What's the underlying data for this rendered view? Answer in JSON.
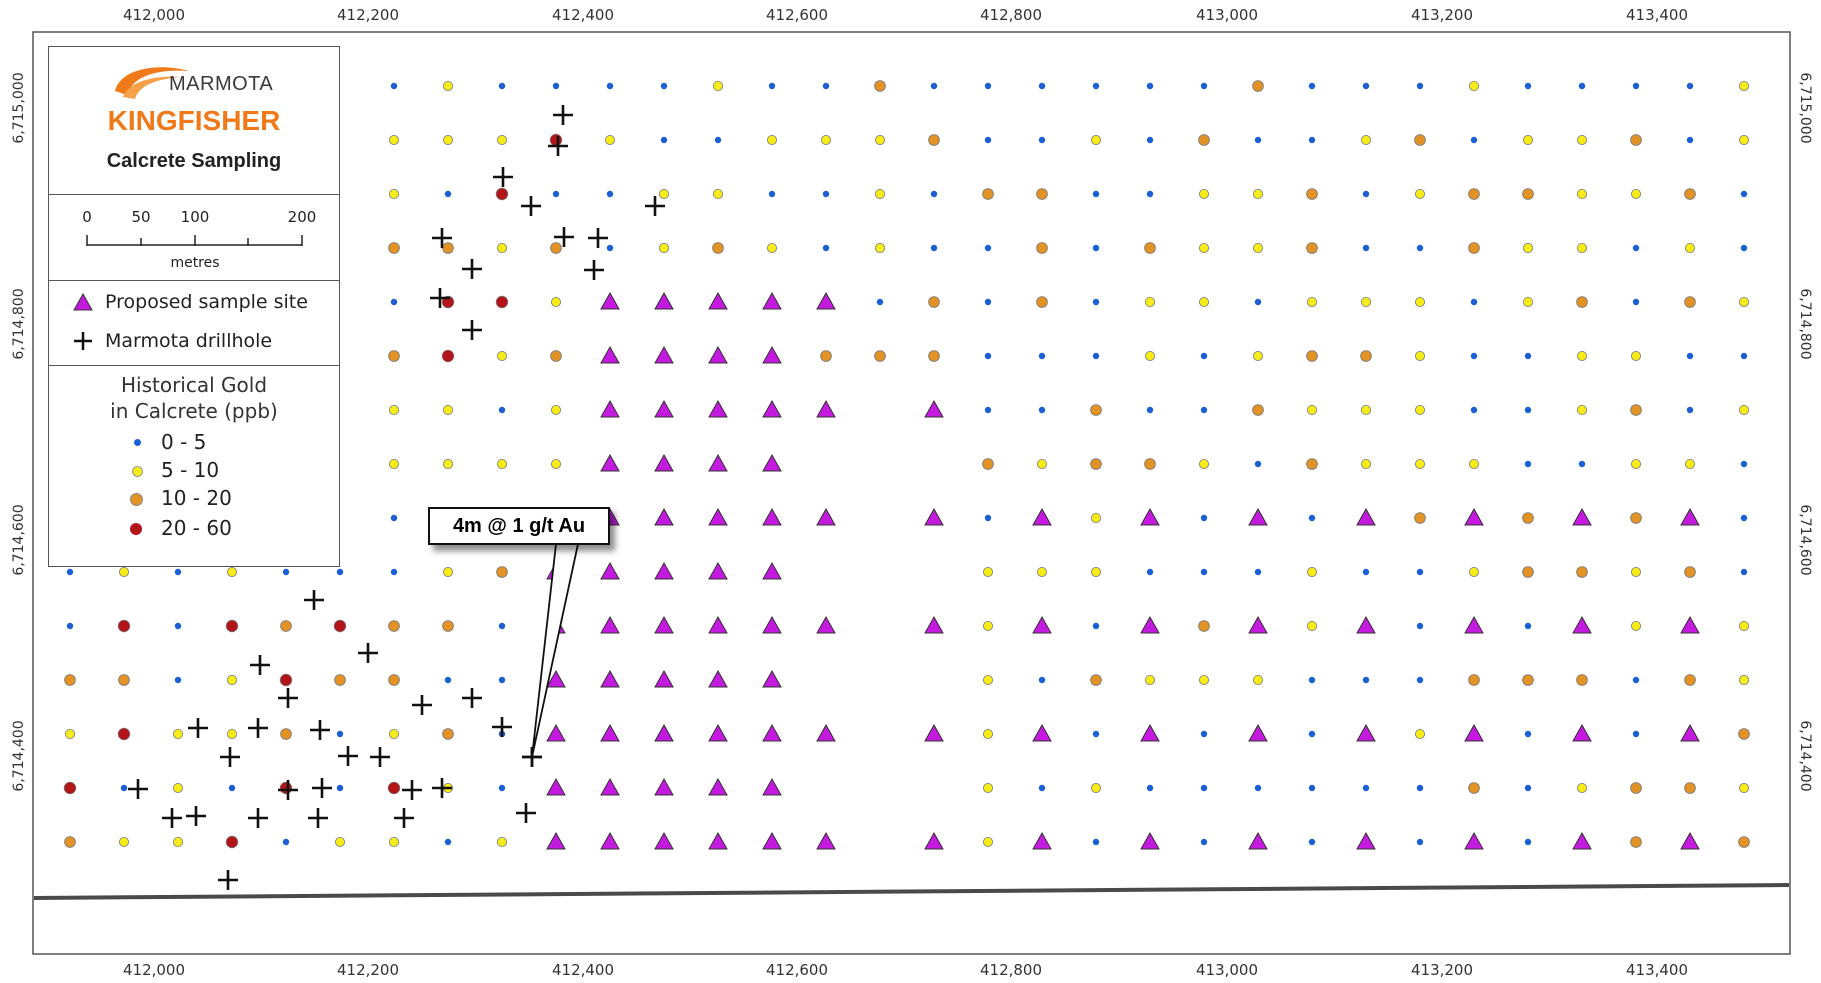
{
  "map": {
    "x_axis_labels": [
      "412,000",
      "412,200",
      "412,400",
      "412,600",
      "412,800",
      "413,000",
      "413,200",
      "413,400"
    ],
    "y_axis_labels": [
      "6,715,000",
      "6,714,800",
      "6,714,600",
      "6,714,400"
    ],
    "grid": false
  },
  "legend": {
    "brand": "MARMOTA",
    "project": "KINGFISHER",
    "subtitle": "Calcrete Sampling",
    "scale_ticks": [
      "0",
      "50",
      "100",
      "200"
    ],
    "scale_unit": "metres",
    "symbols": [
      {
        "label": "Proposed sample site",
        "icon": "purple-triangle"
      },
      {
        "label": "Marmota drillhole",
        "icon": "black-cross"
      }
    ],
    "gold_title_line1": "Historical Gold",
    "gold_title_line2": "in Calcrete (ppb)",
    "gold_classes": [
      {
        "label": "0 - 5",
        "color": "#1a5fd6"
      },
      {
        "label": "5 - 10",
        "color": "#f5ec1a"
      },
      {
        "label": "10 - 20",
        "color": "#e39224"
      },
      {
        "label": "20 - 60",
        "color": "#b3141a"
      }
    ]
  },
  "callout": {
    "text": "4m @ 1 g/t Au"
  },
  "colors": {
    "proposed": "#c41ae0",
    "boundary_line": "#4a4a4a",
    "brand_orange": "#f07a1a"
  }
}
